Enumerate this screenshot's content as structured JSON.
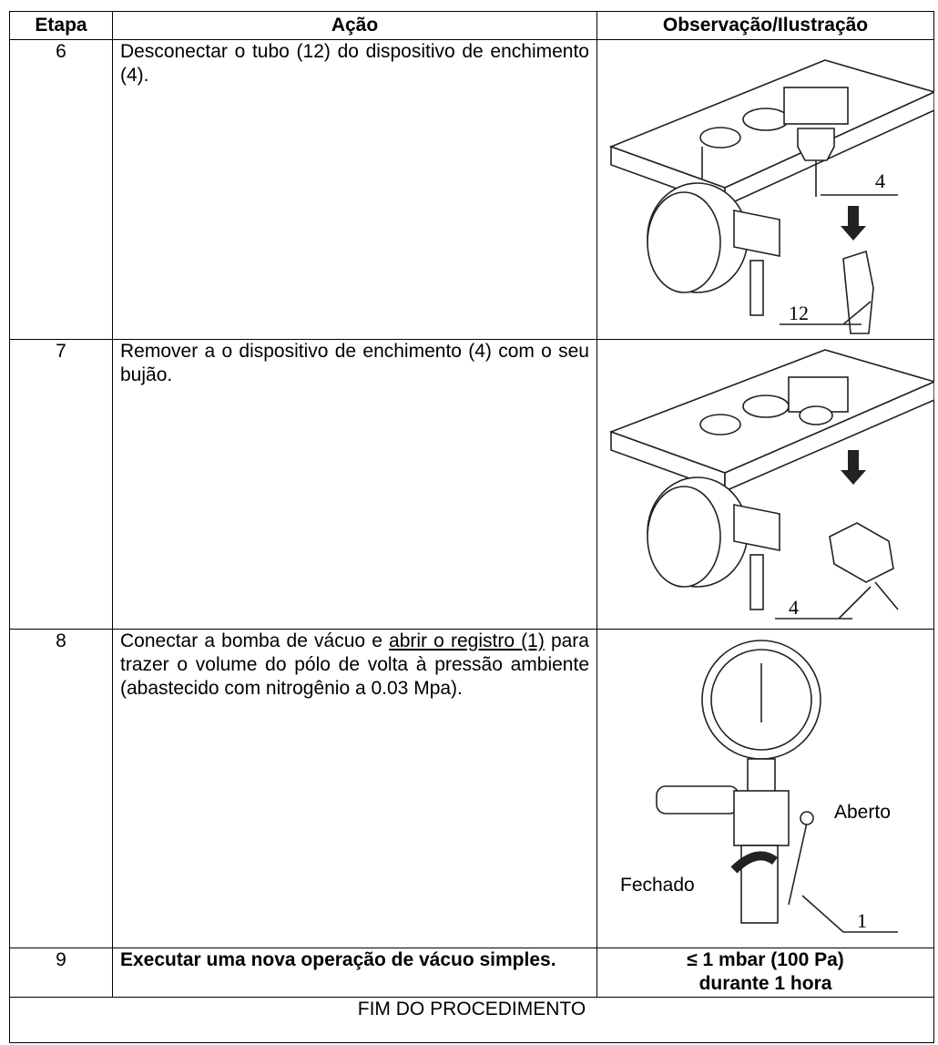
{
  "table": {
    "header": [
      "Etapa",
      "Ação",
      "Observação/Ilustração"
    ],
    "rows": [
      {
        "step": "6",
        "action": "Desconectar o tubo (12) do dispositivo de enchimento (4).",
        "labels": [
          "4",
          "12"
        ]
      },
      {
        "step": "7",
        "action": "Remover a o dispositivo de enchimento (4) com o seu bujão.",
        "labels": [
          "4"
        ]
      },
      {
        "step": "8",
        "action_parts": [
          "Conectar a bomba de vácuo e ",
          "abrir o registro (1)",
          " para trazer o volume do pólo de volta à pressão ambiente (abastecido com nitrogênio a 0.03 Mpa)."
        ],
        "labels": [
          "Aberto",
          "Fechado",
          "1"
        ]
      },
      {
        "step": "9",
        "action": "Executar uma nova operação de vácuo simples.",
        "observation": [
          "≤ 1 mbar (100 Pa)",
          "durante 1 hora"
        ]
      }
    ],
    "footer": "FIM DO PROCEDIMENTO"
  }
}
